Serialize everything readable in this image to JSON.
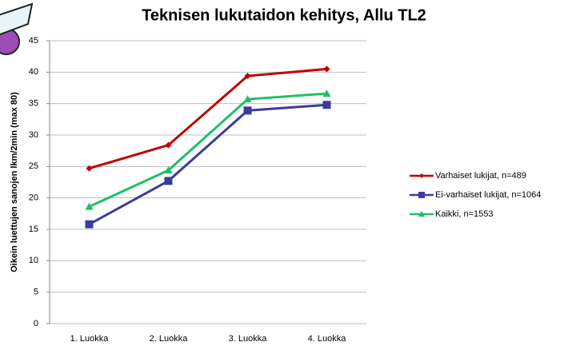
{
  "chart_data": {
    "type": "line",
    "title": "Teknisen lukutaidon kehitys, Allu TL2",
    "y_label": "Oikein luettujen sanojen lkm/2min (max 80)",
    "categories": [
      "1. Luokka",
      "2. Luokka",
      "3. Luokka",
      "4. Luokka"
    ],
    "series": [
      {
        "name": "Varhaiset lukijat, n=489",
        "color": "#c00000",
        "marker": "diamond",
        "values": [
          24.7,
          28.4,
          39.4,
          40.5
        ]
      },
      {
        "name": "Ei-varhaiset lukijat, n=1064",
        "color": "#3b3b9e",
        "marker": "square",
        "values": [
          15.8,
          22.7,
          33.9,
          34.8
        ]
      },
      {
        "name": "Kaikki, n=1553",
        "color": "#1fbf6a",
        "marker": "triangle",
        "values": [
          18.6,
          24.4,
          35.7,
          36.6
        ]
      }
    ],
    "ylim": [
      0,
      45
    ],
    "yticks": [
      0,
      5,
      10,
      15,
      20,
      25,
      30,
      35,
      40,
      45
    ],
    "grid": true,
    "legend": "right"
  }
}
